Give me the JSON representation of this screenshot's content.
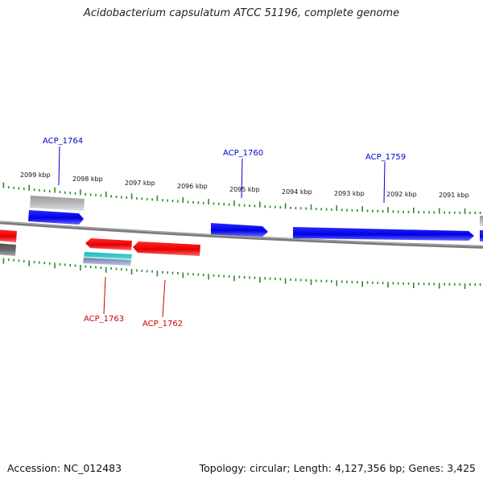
{
  "title": "Acidobacterium capsulatum ATCC 51196, complete genome",
  "footer": {
    "accession": "Accession: NC_012483",
    "stats": "Topology: circular; Length: 4,127,356 bp; Genes: 3,425"
  },
  "colors": {
    "forward_gene": "#0000ee",
    "reverse_gene": "#ee0000",
    "label_forward": "#0000cc",
    "label_reverse": "#cc0000",
    "backbone": "#808080",
    "ticks": "#2a8a2a",
    "rna": "#20b2aa",
    "pseudo": "#aaaaaa"
  },
  "scale": {
    "labels": [
      "2099 kbp",
      "2098 kbp",
      "2097 kbp",
      "2096 kbp",
      "2095 kbp",
      "2094 kbp",
      "2093 kbp",
      "2092 kbp",
      "2091 kbp"
    ]
  },
  "gene_labels": [
    {
      "text": "ACP_1764",
      "strand": "forward"
    },
    {
      "text": "ACP_1760",
      "strand": "forward"
    },
    {
      "text": "ACP_1759",
      "strand": "forward"
    },
    {
      "text": "ACP_1763",
      "strand": "reverse"
    },
    {
      "text": "ACP_1762",
      "strand": "reverse"
    }
  ]
}
